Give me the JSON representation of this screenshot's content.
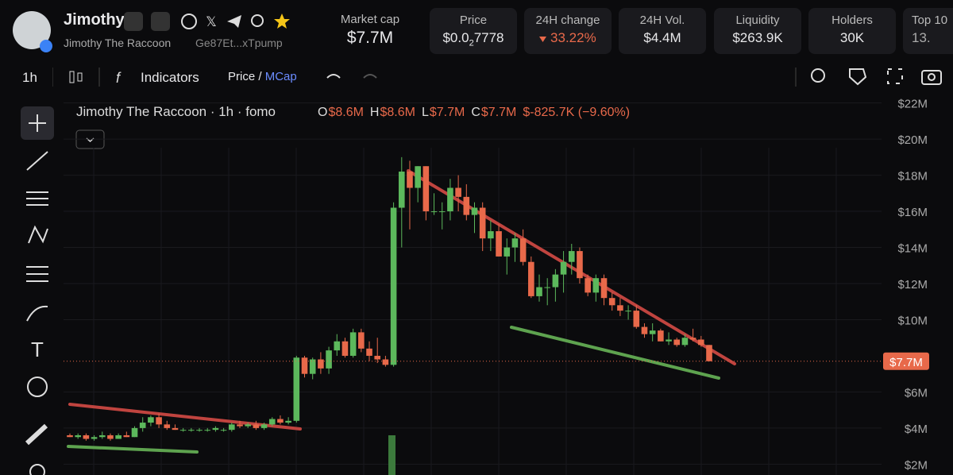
{
  "header": {
    "name": "Jimothy",
    "full_name": "Jimothy The Raccoon",
    "address": "Ge87Et...xTpump",
    "stats": [
      {
        "label": "Market cap",
        "value": "$7.7M"
      },
      {
        "label": "Price",
        "value": [
          "$0.0",
          "2",
          "7778"
        ]
      },
      {
        "label": "24H change",
        "value": "33.22%"
      },
      {
        "label": "24H Vol.",
        "value": "$4.4M"
      },
      {
        "label": "Liquidity",
        "value": "$263.9K"
      },
      {
        "label": "Holders",
        "value": "30K"
      },
      {
        "label": "Top 10",
        "value": "13."
      }
    ]
  },
  "toolbar": {
    "interval": "1h",
    "indicators": "Indicators",
    "price": "Price",
    "sep": "/",
    "mcap": "MCap"
  },
  "chart_data": {
    "type": "candlestick",
    "title": "Jimothy The Raccoon · 1h · fomo",
    "legend": [
      {
        "k": "O",
        "v": "$8.6M"
      },
      {
        "k": "H",
        "v": "$8.6M"
      },
      {
        "k": "L",
        "v": "$7.7M"
      },
      {
        "k": "C",
        "v": "$7.7M"
      },
      {
        "k": "",
        "v": "$-825.7K (−9.60%)"
      }
    ],
    "open": [
      3.6,
      3.5,
      3.6,
      3.4,
      3.5,
      3.6,
      3.4,
      3.6,
      3.5,
      4.0,
      4.3,
      4.6,
      4.2,
      4.0,
      3.9,
      3.9,
      3.9,
      3.9,
      3.9,
      3.9,
      3.9,
      4.2,
      4.1,
      4.2,
      4.0,
      4.2,
      4.5,
      4.3,
      4.4,
      7.9,
      7.0,
      7.8,
      7.3,
      8.3,
      8.8,
      8.0,
      9.3,
      8.4,
      8.0,
      7.8,
      7.5,
      16.2,
      18.2,
      17.3,
      18.5,
      16.0,
      16.0,
      16.0,
      17.3,
      16.8,
      15.8,
      16.2,
      14.5,
      14.9,
      13.5,
      14.0,
      14.5,
      13.2,
      11.3,
      11.8,
      11.8,
      12.5,
      13.2,
      13.8,
      12.3,
      11.5,
      12.3,
      11.2,
      10.8,
      10.5,
      10.5,
      9.6,
      9.2,
      9.4,
      8.8,
      8.9,
      8.6,
      9.0,
      8.9,
      8.6
    ],
    "high": [
      3.7,
      3.7,
      3.7,
      3.6,
      3.8,
      3.7,
      3.7,
      3.8,
      4.1,
      4.6,
      4.7,
      4.8,
      4.4,
      4.2,
      4.0,
      4.0,
      4.0,
      4.0,
      4.1,
      4.0,
      4.3,
      4.4,
      4.3,
      4.4,
      4.3,
      4.6,
      4.7,
      4.6,
      8.0,
      8.0,
      7.9,
      8.2,
      8.5,
      9.2,
      9.0,
      9.5,
      9.5,
      8.8,
      9.0,
      8.0,
      16.5,
      19.0,
      18.8,
      18.5,
      18.5,
      17.0,
      16.5,
      17.8,
      18.0,
      17.5,
      16.5,
      16.5,
      15.5,
      15.3,
      14.5,
      14.8,
      15.0,
      13.5,
      12.5,
      12.3,
      12.8,
      13.8,
      14.2,
      14.0,
      12.5,
      12.5,
      12.5,
      11.5,
      11.2,
      10.8,
      10.8,
      9.8,
      9.8,
      9.5,
      9.3,
      9.0,
      9.2,
      9.5,
      9.1,
      8.6
    ],
    "low": [
      3.5,
      3.4,
      3.3,
      3.3,
      3.4,
      3.3,
      3.4,
      3.5,
      3.5,
      3.8,
      4.1,
      4.0,
      3.9,
      3.9,
      3.8,
      3.8,
      3.8,
      3.8,
      3.8,
      3.8,
      3.8,
      4.0,
      4.0,
      3.9,
      3.9,
      4.1,
      4.2,
      4.2,
      4.3,
      6.8,
      6.7,
      7.0,
      7.0,
      8.0,
      7.9,
      7.9,
      8.2,
      7.7,
      7.6,
      7.4,
      7.4,
      14.0,
      15.0,
      16.5,
      15.5,
      15.8,
      15.0,
      15.5,
      16.0,
      15.5,
      14.8,
      13.8,
      13.8,
      13.5,
      12.5,
      13.2,
      13.0,
      11.2,
      11.0,
      10.8,
      11.0,
      11.5,
      12.5,
      12.0,
      11.3,
      11.0,
      10.8,
      10.5,
      10.2,
      10.0,
      9.5,
      9.0,
      8.8,
      8.8,
      8.6,
      8.5,
      8.5,
      8.8,
      8.5,
      7.7
    ],
    "close": [
      3.5,
      3.6,
      3.4,
      3.5,
      3.6,
      3.4,
      3.6,
      3.5,
      4.0,
      4.3,
      4.6,
      4.2,
      4.0,
      3.9,
      3.9,
      3.9,
      3.9,
      3.9,
      4.0,
      3.9,
      4.2,
      4.1,
      4.2,
      4.0,
      4.2,
      4.5,
      4.3,
      4.4,
      7.9,
      7.0,
      7.8,
      7.3,
      8.3,
      8.8,
      8.0,
      9.3,
      8.4,
      8.0,
      7.8,
      7.5,
      16.2,
      18.2,
      17.3,
      18.5,
      16.0,
      16.0,
      16.0,
      17.3,
      16.8,
      15.8,
      16.2,
      14.5,
      14.9,
      13.5,
      14.0,
      14.5,
      13.2,
      11.3,
      11.8,
      11.8,
      12.5,
      13.2,
      13.8,
      12.3,
      11.5,
      12.3,
      11.2,
      10.8,
      10.5,
      10.5,
      9.6,
      9.2,
      9.4,
      8.8,
      8.9,
      8.6,
      9.0,
      8.9,
      8.6,
      7.7
    ],
    "ylim": [
      1.4,
      22.6
    ],
    "yticks": [
      {
        "value": 22,
        "label": "$22M"
      },
      {
        "value": 20,
        "label": "$20M"
      },
      {
        "value": 18,
        "label": "$18M"
      },
      {
        "value": 16,
        "label": "$16M"
      },
      {
        "value": 14,
        "label": "$14M"
      },
      {
        "value": 12,
        "label": "$12M"
      },
      {
        "value": 10,
        "label": "$10M"
      },
      {
        "value": 6,
        "label": "$6M"
      },
      {
        "value": 4,
        "label": "$4M"
      },
      {
        "value": 2,
        "label": "$2M"
      }
    ],
    "last": {
      "value": 7.7,
      "label": "$7.7M"
    },
    "up_color": "#5cb85c",
    "down_color": "#e8694a"
  }
}
